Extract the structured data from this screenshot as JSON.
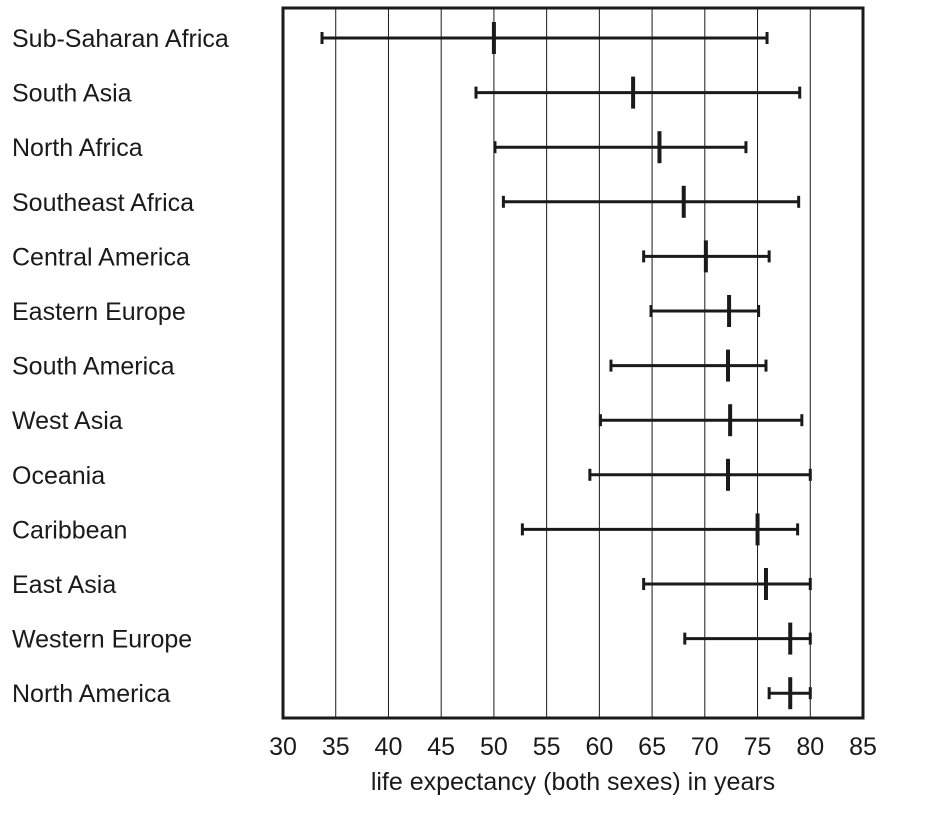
{
  "chart_data": {
    "type": "range",
    "orientation": "horizontal",
    "title": "",
    "xlabel": "life expectancy (both sexes) in years",
    "ylabel": "",
    "xlim": [
      30,
      85
    ],
    "x_ticks": [
      30,
      35,
      40,
      45,
      50,
      55,
      60,
      65,
      70,
      75,
      80,
      85
    ],
    "grid": "vertical",
    "legend": "none",
    "colors": {
      "line": "#1a1a1a",
      "grid": "#1a1a1a",
      "text": "#1a1a1a"
    },
    "categories": [
      "Sub-Saharan Africa",
      "South Asia",
      "North Africa",
      "Southeast Africa",
      "Central America",
      "Eastern Europe",
      "South America",
      "West Asia",
      "Oceania",
      "Caribbean",
      "East Asia",
      "Western Europe",
      "North America"
    ],
    "min": [
      33.7,
      48.3,
      50.1,
      50.9,
      64.2,
      64.9,
      61.1,
      60.1,
      59.1,
      52.7,
      64.2,
      68.1,
      76.1
    ],
    "median": [
      50.0,
      63.2,
      65.7,
      68.0,
      70.1,
      72.3,
      72.2,
      72.4,
      72.2,
      75.0,
      75.8,
      78.1,
      78.1
    ],
    "max": [
      75.9,
      79.0,
      73.9,
      78.9,
      76.1,
      75.1,
      75.8,
      79.2,
      80.0,
      78.8,
      80.0,
      80.0,
      80.0
    ]
  }
}
